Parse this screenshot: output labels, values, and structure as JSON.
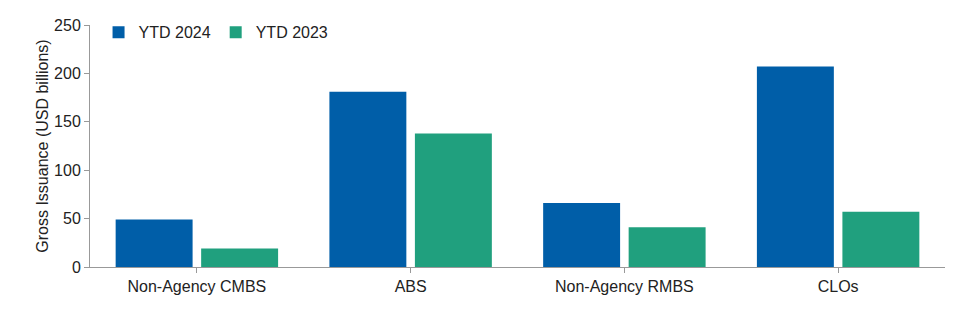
{
  "chart_data": {
    "type": "bar",
    "y_label": "Gross Issuance (USD billions)",
    "categories": [
      "Non-Agency CMBS",
      "ABS",
      "Non-Agency RMBS",
      "CLOs"
    ],
    "series": [
      {
        "name": "YTD 2024",
        "color": "#005ea8",
        "values": [
          49,
          181,
          66,
          207
        ]
      },
      {
        "name": "YTD 2023",
        "color": "#20a07e",
        "values": [
          19,
          138,
          41,
          57
        ]
      }
    ],
    "ylim": [
      0,
      250
    ],
    "yticks": [
      0,
      50,
      100,
      150,
      200,
      250
    ],
    "grid": false,
    "legend": "upper left"
  }
}
